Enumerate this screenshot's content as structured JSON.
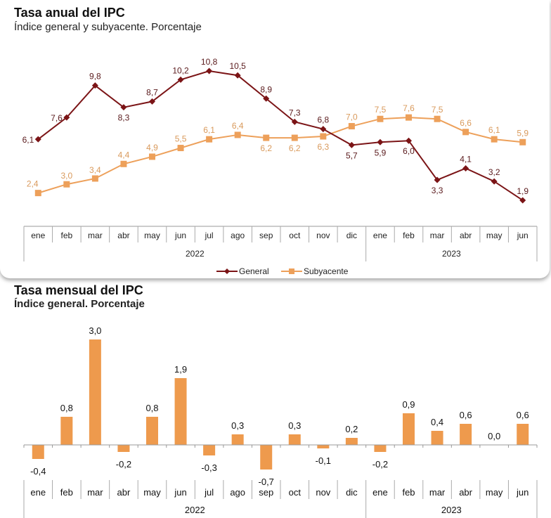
{
  "chart_data": [
    {
      "type": "line",
      "title": "Tasa anual del IPC",
      "subtitle": "Índice general y subyacente. Porcentaje",
      "categories": [
        "ene",
        "feb",
        "mar",
        "abr",
        "may",
        "jun",
        "jul",
        "ago",
        "sep",
        "oct",
        "nov",
        "dic",
        "ene",
        "feb",
        "mar",
        "abr",
        "may",
        "jun"
      ],
      "year_groups": [
        {
          "label": "2022",
          "count": 12
        },
        {
          "label": "2023",
          "count": 6
        }
      ],
      "series": [
        {
          "name": "General",
          "color": "#7b1416",
          "marker": "diamond",
          "values": [
            6.1,
            7.6,
            9.8,
            8.3,
            8.7,
            10.2,
            10.8,
            10.5,
            8.9,
            7.3,
            6.8,
            5.7,
            5.9,
            6.0,
            3.3,
            4.1,
            3.2,
            1.9
          ]
        },
        {
          "name": "Subyacente",
          "color": "#eda05a",
          "marker": "square",
          "values": [
            2.4,
            3.0,
            3.4,
            4.4,
            4.9,
            5.5,
            6.1,
            6.4,
            6.2,
            6.2,
            6.3,
            7.0,
            7.5,
            7.6,
            7.5,
            6.6,
            6.1,
            5.9
          ]
        }
      ],
      "legend": "bottom",
      "grid": false
    },
    {
      "type": "bar",
      "title": "Tasa mensual del IPC",
      "subtitle": "Índice general. Porcentaje",
      "categories": [
        "ene",
        "feb",
        "mar",
        "abr",
        "may",
        "jun",
        "jul",
        "ago",
        "sep",
        "oct",
        "nov",
        "dic",
        "ene",
        "feb",
        "mar",
        "abr",
        "may",
        "jun"
      ],
      "year_groups": [
        {
          "label": "2022",
          "count": 12
        },
        {
          "label": "2023",
          "count": 6
        }
      ],
      "values": [
        -0.4,
        0.8,
        3.0,
        -0.2,
        0.8,
        1.9,
        -0.3,
        0.3,
        -0.7,
        0.3,
        -0.1,
        0.2,
        -0.2,
        0.9,
        0.4,
        0.6,
        0.0,
        0.6
      ],
      "color": "#ee9a4d",
      "grid": false
    }
  ]
}
